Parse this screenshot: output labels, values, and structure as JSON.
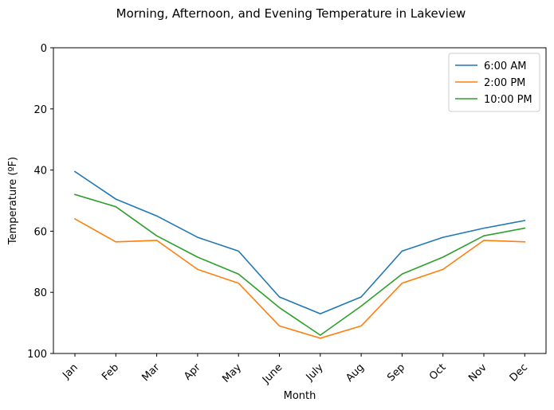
{
  "chart_data": {
    "type": "line",
    "title": "Morning, Afternoon, and Evening Temperature in Lakeview",
    "xlabel": "Month",
    "ylabel": "Temperature (ºF)",
    "categories": [
      "Jan",
      "Feb",
      "Mar",
      "Apr",
      "May",
      "June",
      "July",
      "Aug",
      "Sep",
      "Oct",
      "Nov",
      "Dec"
    ],
    "ylim": [
      0,
      100
    ],
    "y_inverted": true,
    "yticks": [
      0,
      20,
      40,
      60,
      80,
      100
    ],
    "grid": false,
    "legend_position": "top-right",
    "series": [
      {
        "name": "6:00 AM",
        "color": "#1f77b4",
        "values": [
          40.5,
          49.5,
          55,
          62,
          66.5,
          81.5,
          87,
          81.5,
          66.5,
          62,
          59,
          56.5
        ]
      },
      {
        "name": "2:00 PM",
        "color": "#ff7f0e",
        "values": [
          56,
          63.5,
          63,
          72.5,
          77,
          91,
          95,
          91,
          77,
          72.5,
          63,
          63.5
        ]
      },
      {
        "name": "10:00 PM",
        "color": "#2ca02c",
        "values": [
          48,
          52,
          61.5,
          68.5,
          74,
          85,
          94,
          84.5,
          74,
          68.5,
          61.5,
          59
        ]
      }
    ]
  }
}
